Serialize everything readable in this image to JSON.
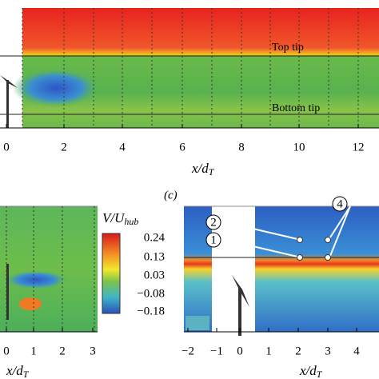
{
  "top_panel": {
    "annotations": [
      "Top tip",
      "Bottom tip"
    ],
    "xticks": [
      "0",
      "2",
      "4",
      "6",
      "8",
      "10",
      "12"
    ],
    "xlabel": "x/d",
    "xlabel_sub": "T"
  },
  "panel_label": "(c)",
  "left_panel": {
    "xticks": [
      "0",
      "1",
      "2",
      "3"
    ],
    "xlabel": "x/d",
    "xlabel_sub": "T"
  },
  "colorbar": {
    "label": "V/U",
    "label_sub": "hub",
    "ticks": [
      "0.24",
      "0.13",
      "0.03",
      "−0.08",
      "−0.18"
    ]
  },
  "right_panel": {
    "xticks": [
      "−2",
      "−1",
      "0",
      "1",
      "2",
      "3",
      "4"
    ],
    "xlabel": "x/d",
    "xlabel_sub": "T",
    "markers": [
      "2",
      "1",
      "4"
    ]
  }
}
